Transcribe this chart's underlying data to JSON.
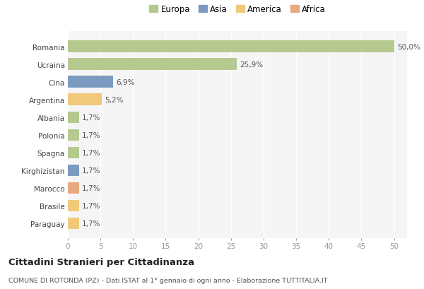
{
  "categories": [
    "Romania",
    "Ucraina",
    "Cina",
    "Argentina",
    "Albania",
    "Polonia",
    "Spagna",
    "Kirghizistan",
    "Marocco",
    "Brasile",
    "Paraguay"
  ],
  "values": [
    50.0,
    25.9,
    6.9,
    5.2,
    1.7,
    1.7,
    1.7,
    1.7,
    1.7,
    1.7,
    1.7
  ],
  "colors": [
    "#b5c98e",
    "#b5c98e",
    "#7a9bbf",
    "#f0c97a",
    "#b5c98e",
    "#b5c98e",
    "#b5c98e",
    "#7a9bbf",
    "#e8a882",
    "#f0c97a",
    "#f0c97a"
  ],
  "labels": [
    "50,0%",
    "25,9%",
    "6,9%",
    "5,2%",
    "1,7%",
    "1,7%",
    "1,7%",
    "1,7%",
    "1,7%",
    "1,7%",
    "1,7%"
  ],
  "legend": [
    {
      "label": "Europa",
      "color": "#b5c98e"
    },
    {
      "label": "Asia",
      "color": "#7a9bbf"
    },
    {
      "label": "America",
      "color": "#f0c97a"
    },
    {
      "label": "Africa",
      "color": "#e8a882"
    }
  ],
  "title": "Cittadini Stranieri per Cittadinanza",
  "subtitle": "COMUNE DI ROTONDA (PZ) - Dati ISTAT al 1° gennaio di ogni anno - Elaborazione TUTTITALIA.IT",
  "xlim": [
    0,
    52
  ],
  "xticks": [
    0,
    5,
    10,
    15,
    20,
    25,
    30,
    35,
    40,
    45,
    50
  ],
  "background_color": "#ffffff",
  "plot_bg_color": "#f5f5f5",
  "grid_color": "#ffffff",
  "bar_height": 0.65
}
